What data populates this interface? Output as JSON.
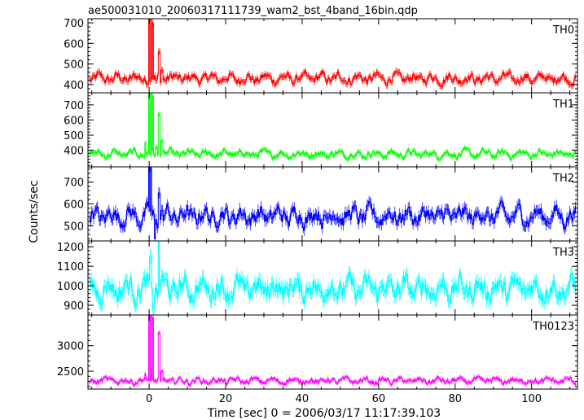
{
  "chart_data": {
    "type": "line",
    "title": "ae500031010_20060317111739_wam2_bst_4band_16bin.qdp",
    "xlabel": "Time [sec] 0 = 2006/03/17 11:17:39.103",
    "ylabel": "Counts/sec",
    "xlim": [
      -16,
      112
    ],
    "xticks": [
      0,
      20,
      40,
      60,
      80,
      100
    ],
    "grid": false,
    "panels": [
      {
        "name": "TH0",
        "color": "#ff0000",
        "ylim": [
          360,
          720
        ],
        "yticks": [
          400,
          500,
          600,
          700
        ],
        "baseline": 430,
        "noise": 18,
        "err": 16,
        "peaks": [
          [
            0.0,
            720
          ],
          [
            0.5,
            720
          ],
          [
            1.0,
            700
          ],
          [
            1.8,
            420
          ],
          [
            2.6,
            560
          ],
          [
            3.3,
            470
          ]
        ]
      },
      {
        "name": "TH1",
        "color": "#00ff00",
        "ylim": [
          290,
          780
        ],
        "yticks": [
          400,
          500,
          600,
          700
        ],
        "baseline": 375,
        "noise": 18,
        "err": 16,
        "peaks": [
          [
            -1.0,
            450
          ],
          [
            0.0,
            780
          ],
          [
            0.5,
            780
          ],
          [
            1.0,
            760
          ],
          [
            1.8,
            420
          ],
          [
            2.6,
            640
          ],
          [
            3.3,
            460
          ]
        ]
      },
      {
        "name": "TH2",
        "color": "#0000ff",
        "ylim": [
          430,
          770
        ],
        "yticks": [
          500,
          600,
          700
        ],
        "baseline": 545,
        "noise": 30,
        "err": 25,
        "peaks": [
          [
            0.0,
            770
          ],
          [
            0.5,
            770
          ],
          [
            1.5,
            440
          ],
          [
            2.6,
            650
          ],
          [
            3.3,
            570
          ]
        ]
      },
      {
        "name": "TH3",
        "color": "#00ffff",
        "ylim": [
          850,
          1230
        ],
        "yticks": [
          900,
          1000,
          1100,
          1200
        ],
        "baseline": 985,
        "noise": 40,
        "err": 35,
        "peaks": [
          [
            0.3,
            1150
          ],
          [
            1.2,
            880
          ],
          [
            2.5,
            1230
          ],
          [
            3.3,
            1050
          ]
        ]
      },
      {
        "name": "TH0123",
        "color": "#ff00ff",
        "ylim": [
          2150,
          3600
        ],
        "yticks": [
          2500,
          3000
        ],
        "baseline": 2310,
        "noise": 45,
        "err": 40,
        "peaks": [
          [
            -1.0,
            2450
          ],
          [
            0.0,
            3600
          ],
          [
            0.5,
            3600
          ],
          [
            1.0,
            3550
          ],
          [
            1.8,
            2300
          ],
          [
            2.6,
            3250
          ],
          [
            3.3,
            2500
          ]
        ]
      }
    ]
  }
}
